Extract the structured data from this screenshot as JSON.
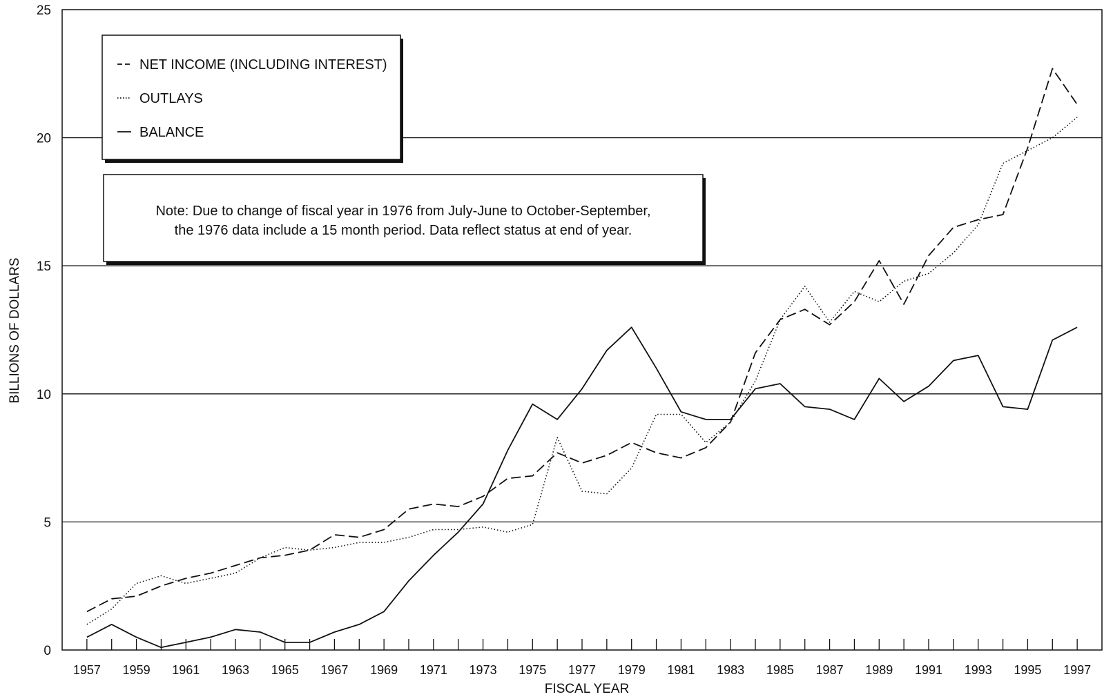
{
  "chart_data": {
    "type": "line",
    "title": "",
    "xlabel": "FISCAL YEAR",
    "ylabel": "BILLIONS OF DOLLARS",
    "xlim": [
      1956,
      1998
    ],
    "ylim": [
      0,
      25
    ],
    "yticks": [
      0,
      5,
      10,
      15,
      20,
      25
    ],
    "xticks": [
      1957,
      1959,
      1961,
      1963,
      1965,
      1967,
      1969,
      1971,
      1973,
      1975,
      1977,
      1979,
      1981,
      1983,
      1985,
      1987,
      1989,
      1991,
      1993,
      1995,
      1997
    ],
    "grid": "horizontal",
    "legend_position": "top-left",
    "note": {
      "line1": "Note: Due to change of fiscal year in 1976 from July-June to October-September,",
      "line2": "the 1976 data include a 15 month period.  Data reflect status at end of year."
    },
    "x": [
      1957,
      1958,
      1959,
      1960,
      1961,
      1962,
      1963,
      1964,
      1965,
      1966,
      1967,
      1968,
      1969,
      1970,
      1971,
      1972,
      1973,
      1974,
      1975,
      1976,
      1977,
      1978,
      1979,
      1980,
      1981,
      1982,
      1983,
      1984,
      1985,
      1986,
      1987,
      1988,
      1989,
      1990,
      1991,
      1992,
      1993,
      1994,
      1995,
      1996,
      1997
    ],
    "series": [
      {
        "name": "NET INCOME (INCLUDING INTEREST)",
        "style": "dashed",
        "color": "#111111",
        "values": [
          1.5,
          2.0,
          2.1,
          2.5,
          2.8,
          3.0,
          3.3,
          3.6,
          3.7,
          3.9,
          4.5,
          4.4,
          4.7,
          5.5,
          5.7,
          5.6,
          6.0,
          6.7,
          6.8,
          7.7,
          7.3,
          7.6,
          8.1,
          7.7,
          7.5,
          7.9,
          8.9,
          11.6,
          12.9,
          13.3,
          12.7,
          13.6,
          15.2,
          13.5,
          15.4,
          16.5,
          16.8,
          17.0,
          19.6,
          22.7,
          21.3
        ]
      },
      {
        "name": "OUTLAYS",
        "style": "dotted",
        "color": "#111111",
        "values": [
          1.0,
          1.6,
          2.6,
          2.9,
          2.6,
          2.8,
          3.0,
          3.6,
          4.0,
          3.9,
          4.0,
          4.2,
          4.2,
          4.4,
          4.7,
          4.7,
          4.8,
          4.6,
          4.9,
          8.3,
          6.2,
          6.1,
          7.1,
          9.2,
          9.2,
          8.1,
          8.9,
          10.5,
          12.9,
          14.2,
          12.8,
          14.0,
          13.6,
          14.4,
          14.7,
          15.5,
          16.6,
          19.0,
          19.5,
          20.0,
          20.8
        ]
      },
      {
        "name": "BALANCE",
        "style": "solid",
        "color": "#111111",
        "values": [
          0.5,
          1.0,
          0.5,
          0.1,
          0.3,
          0.5,
          0.8,
          0.7,
          0.3,
          0.3,
          0.7,
          1.0,
          1.5,
          2.7,
          3.7,
          4.6,
          5.7,
          7.8,
          9.6,
          9.0,
          10.2,
          11.7,
          12.6,
          11.0,
          9.3,
          9.0,
          9.0,
          10.2,
          10.4,
          9.5,
          9.4,
          9.0,
          10.6,
          9.7,
          10.3,
          11.3,
          11.5,
          9.5,
          9.4,
          12.1,
          12.6
        ]
      }
    ]
  }
}
